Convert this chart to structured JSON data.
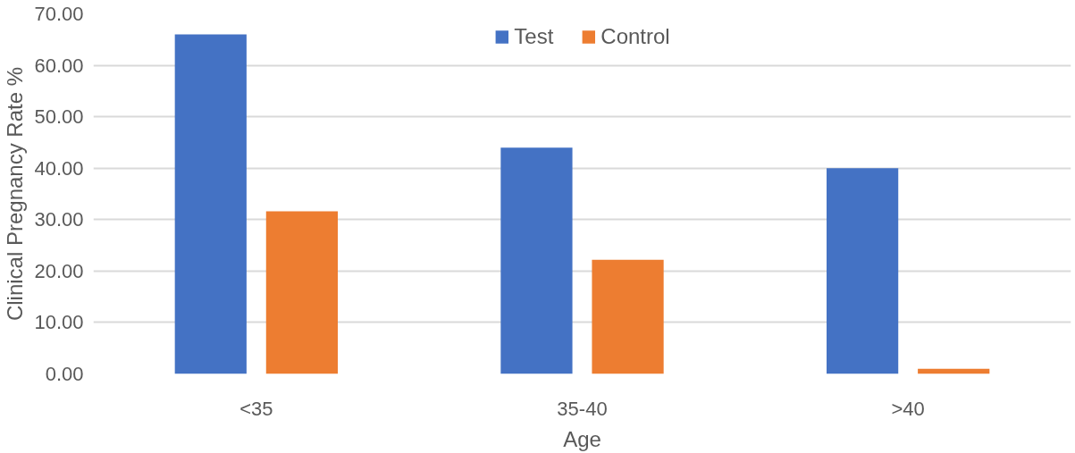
{
  "chart_data": {
    "type": "bar",
    "xlabel": "Age",
    "ylabel": "Clinical Pregnancy Rate %",
    "categories": [
      "<35",
      "35-40",
      ">40"
    ],
    "series": [
      {
        "name": "Test",
        "color": "#4472c4",
        "values": [
          66.0,
          44.0,
          40.0
        ]
      },
      {
        "name": "Control",
        "color": "#ed7d31",
        "values": [
          31.6,
          22.2,
          1.0
        ]
      }
    ],
    "ylim": [
      0,
      70
    ],
    "yticks": [
      {
        "value": 0,
        "label": "0.00"
      },
      {
        "value": 10,
        "label": "10.00"
      },
      {
        "value": 20,
        "label": "20.00"
      },
      {
        "value": 30,
        "label": "30.00"
      },
      {
        "value": 40,
        "label": "40.00"
      },
      {
        "value": 50,
        "label": "50.00"
      },
      {
        "value": 60,
        "label": "60.00"
      },
      {
        "value": 70,
        "label": "70.00"
      }
    ],
    "grid": "y",
    "legend": "top"
  }
}
